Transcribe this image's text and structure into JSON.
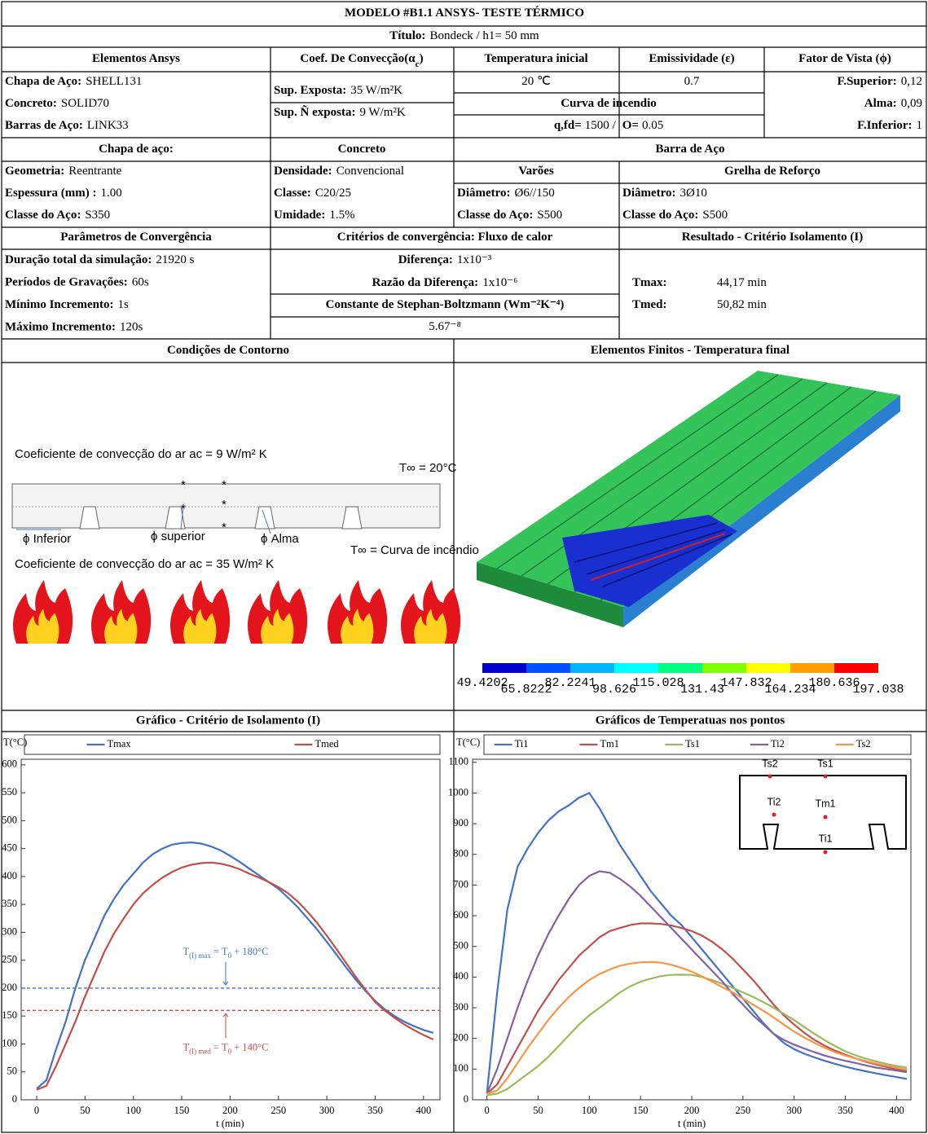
{
  "table": {
    "title": "MODELO #B1.1 ANSYS- TESTE TÉRMICO",
    "subtitle": [
      "Título:",
      "Bondeck  /  h1= 50 mm"
    ],
    "headers": [
      "Elementos Ansys",
      [
        "Coef. De Convecção(α",
        "c",
        ")"
      ],
      "Temperatura inicial",
      "Emissividade (ε)",
      "Fator de Vista (ϕ)"
    ],
    "elements": [
      [
        "Chapa de Aço:",
        "SHELL131"
      ],
      [
        "Concreto:",
        "SOLID70"
      ],
      [
        "Barras de Aço:",
        "LINK33"
      ]
    ],
    "convection": [
      [
        "Sup. Exposta:",
        "35 W/m²K"
      ],
      [
        "Sup. Ñ exposta:",
        "9 W/m²K"
      ]
    ],
    "initial_temperature": "20 ℃",
    "emissivity": "0.7",
    "fire_curve": {
      "title": "Curva de incendio",
      "values": [
        "q,fd=",
        "1500  /",
        "O=",
        "0.05"
      ]
    },
    "view_factor": [
      [
        "F.Superior:",
        "0,12"
      ],
      [
        "Alma:",
        "0,09"
      ],
      [
        "F.Inferior:",
        "1"
      ]
    ],
    "section_headers": [
      "Chapa de aço:",
      "Concreto",
      "Barra de Aço"
    ],
    "steel_sheet": [
      [
        "Geometria:",
        "Reentrante"
      ],
      [
        "Espessura (mm) :",
        "1.00"
      ],
      [
        "Classe do Aço:",
        "S350"
      ]
    ],
    "concrete": [
      [
        "Densidade:",
        "Convencional"
      ],
      [
        "Classe:",
        "C20/25"
      ],
      [
        "Umidade:",
        "1.5%"
      ]
    ],
    "rebar_headers": [
      "Varões",
      "Grelha de Reforço"
    ],
    "bars": [
      [
        "Diâmetro:",
        "Ø6//150"
      ],
      [
        "Classe do Aço:",
        "S500"
      ]
    ],
    "mesh": [
      [
        "Diâmetro:",
        "3Ø10"
      ],
      [
        "Classe do Aço:",
        "S500"
      ]
    ],
    "convergence_headers": [
      "Parâmetros de Convergência",
      "Critérios de convergência: Fluxo de calor",
      "Resultado - Critério Isolamento (I)"
    ],
    "parameters": [
      [
        "Duração total da simulação:",
        "21920 s"
      ],
      [
        "Períodos de Gravações:",
        "60s"
      ],
      [
        "Mínimo Incremento:",
        "1s"
      ],
      [
        "Máximo Incremento:",
        "120s"
      ]
    ],
    "criteria": [
      [
        "Diferença:",
        "1x10⁻³"
      ],
      [
        "Razão da Diferença:",
        "1x10⁻⁶"
      ]
    ],
    "stefan": {
      "label": "Constante de Stephan-Boltzmann (Wm⁻²K⁻⁴)",
      "value": "5.67⁻⁸"
    },
    "results": [
      [
        "Tmax:",
        "44,17 min"
      ],
      [
        "Tmed:",
        "50,82 min"
      ]
    ],
    "figure_headers": [
      "Condições de Contorno",
      "Elementos Finitos - Temperatura final"
    ]
  },
  "boundary_figure": {
    "labels": [
      "Coeficiente de convecção do ar ac = 9 W/m² K",
      "T∞ = 20°C",
      "ϕ Inferior",
      "ϕ superior",
      "ϕ Alma",
      "T∞ = Curva de incêndio",
      "Coeficiente de convecção do ar ac = 35 W/m² K"
    ]
  },
  "fe_figure": {
    "colorbar": [
      "49.4202",
      "65.8222",
      "82.2241",
      "98.626",
      "115.028",
      "131.43",
      "147.832",
      "164.234",
      "180.636",
      "197.038"
    ]
  },
  "chart_data": [
    {
      "type": "line",
      "title": "Gráfico - Critério de Isolamento (I)",
      "ylabel": "T(°C)",
      "xlabel": "t (min)",
      "x": [
        0,
        10,
        20,
        30,
        40,
        50,
        60,
        70,
        80,
        90,
        100,
        110,
        120,
        130,
        140,
        150,
        160,
        170,
        180,
        190,
        200,
        210,
        220,
        230,
        240,
        250,
        260,
        270,
        280,
        290,
        300,
        310,
        320,
        330,
        340,
        350,
        360,
        370,
        380,
        390,
        400,
        410
      ],
      "series": [
        {
          "name": "Tmax",
          "color": "#4472c4",
          "values": [
            20,
            35,
            90,
            140,
            200,
            250,
            290,
            330,
            360,
            385,
            405,
            425,
            440,
            450,
            457,
            460,
            461,
            459,
            454,
            447,
            437,
            426,
            414,
            402,
            390,
            378,
            362,
            345,
            325,
            305,
            283,
            260,
            237,
            215,
            195,
            177,
            162,
            150,
            140,
            132,
            125,
            120
          ]
        },
        {
          "name": "Tmed",
          "color": "#c0504d",
          "values": [
            18,
            25,
            60,
            100,
            140,
            185,
            225,
            265,
            298,
            325,
            350,
            370,
            385,
            398,
            408,
            416,
            421,
            424,
            425,
            423,
            419,
            413,
            405,
            398,
            390,
            381,
            370,
            355,
            337,
            317,
            294,
            270,
            245,
            220,
            197,
            175,
            160,
            147,
            135,
            125,
            116,
            108
          ]
        }
      ],
      "hlines": [
        {
          "value": 200,
          "color": "#4472c4"
        },
        {
          "value": 160,
          "color": "#c0504d"
        }
      ],
      "annotations": [
        [
          "T",
          "(I) max",
          " = T",
          "0",
          " + 180°C"
        ],
        [
          "T",
          "(I) med",
          " = T",
          "0",
          " + 140°C"
        ]
      ],
      "xlim": [
        -16,
        417
      ],
      "ylim": [
        0,
        610
      ],
      "xticks": [
        0,
        50,
        100,
        150,
        200,
        250,
        300,
        350,
        400
      ],
      "yticks": [
        0,
        50,
        100,
        150,
        200,
        250,
        300,
        350,
        400,
        450,
        500,
        550,
        600
      ]
    },
    {
      "type": "line",
      "title": "Gráficos de Temperatuas nos pontos",
      "ylabel": "T(°C)",
      "xlabel": "t (min)",
      "x": [
        0,
        10,
        20,
        30,
        40,
        50,
        60,
        70,
        80,
        90,
        100,
        110,
        120,
        130,
        140,
        150,
        160,
        170,
        180,
        190,
        200,
        210,
        220,
        230,
        240,
        250,
        260,
        270,
        280,
        290,
        300,
        310,
        320,
        330,
        340,
        350,
        360,
        370,
        380,
        390,
        400,
        410
      ],
      "series": [
        {
          "name": "Ti1",
          "color": "#4472c4",
          "values": [
            20,
            350,
            620,
            760,
            820,
            870,
            910,
            940,
            960,
            985,
            1000,
            950,
            890,
            830,
            780,
            730,
            680,
            640,
            600,
            570,
            530,
            490,
            450,
            410,
            370,
            330,
            290,
            250,
            215,
            185,
            165,
            150,
            138,
            127,
            117,
            108,
            100,
            93,
            86,
            80,
            74,
            68
          ]
        },
        {
          "name": "Tm1",
          "color": "#c0504d",
          "values": [
            20,
            50,
            110,
            170,
            230,
            290,
            340,
            390,
            430,
            470,
            500,
            530,
            550,
            560,
            570,
            575,
            575,
            573,
            568,
            560,
            550,
            535,
            515,
            490,
            460,
            425,
            390,
            350,
            310,
            275,
            245,
            218,
            195,
            176,
            160,
            147,
            135,
            124,
            115,
            107,
            100,
            95
          ]
        },
        {
          "name": "Ts1",
          "color": "#9bbb59",
          "values": [
            15,
            20,
            35,
            60,
            85,
            110,
            140,
            175,
            210,
            245,
            275,
            300,
            325,
            350,
            370,
            385,
            395,
            403,
            407,
            408,
            407,
            400,
            390,
            378,
            365,
            350,
            335,
            318,
            300,
            280,
            260,
            237,
            215,
            194,
            175,
            158,
            145,
            134,
            125,
            117,
            110,
            105
          ]
        },
        {
          "name": "Ti2",
          "color": "#8064a2",
          "values": [
            20,
            100,
            200,
            300,
            390,
            470,
            540,
            600,
            655,
            700,
            730,
            745,
            740,
            720,
            695,
            665,
            630,
            595,
            560,
            525,
            490,
            455,
            420,
            385,
            345,
            310,
            275,
            245,
            215,
            195,
            180,
            167,
            155,
            144,
            135,
            127,
            120,
            112,
            105,
            100,
            95,
            90
          ]
        },
        {
          "name": "Ts2",
          "color": "#f79646",
          "values": [
            20,
            30,
            70,
            120,
            170,
            215,
            260,
            300,
            335,
            365,
            390,
            410,
            425,
            437,
            444,
            448,
            449,
            447,
            440,
            430,
            418,
            402,
            385,
            367,
            350,
            330,
            310,
            290,
            268,
            245,
            222,
            203,
            185,
            169,
            155,
            144,
            135,
            126,
            118,
            111,
            104,
            98
          ]
        }
      ],
      "inset_labels": [
        "Ts2",
        "Ts1",
        "Ti2",
        "Tm1",
        "Ti1"
      ],
      "xlim": [
        -14,
        414
      ],
      "ylim": [
        0,
        1110
      ],
      "xticks": [
        0,
        50,
        100,
        150,
        200,
        250,
        300,
        350,
        400
      ],
      "yticks": [
        0,
        100,
        200,
        300,
        400,
        500,
        600,
        700,
        800,
        900,
        1000,
        1100
      ]
    }
  ]
}
